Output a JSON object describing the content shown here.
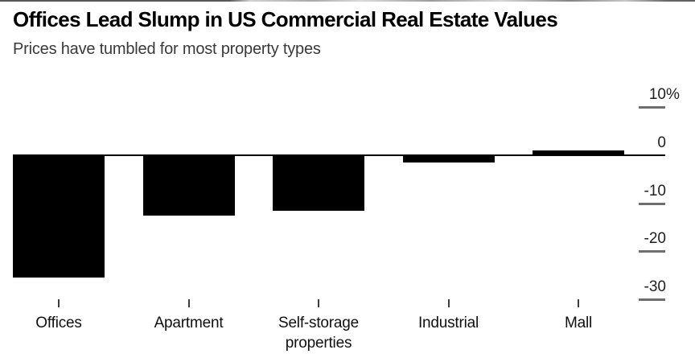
{
  "chart_data": {
    "type": "bar",
    "title": "Offices Lead Slump in US Commercial Real Estate Values",
    "subtitle": "Prices have tumbled for most property types",
    "categories": [
      "Offices",
      "Apartment",
      "Self-storage properties",
      "Industrial",
      "Mall"
    ],
    "category_labels": [
      "Offices",
      "Apartment",
      "Self-storage\nproperties",
      "Industrial",
      "Mall"
    ],
    "values": [
      -25.5,
      -12.5,
      -11.5,
      -1.5,
      1
    ],
    "unit": "%",
    "ylim": [
      -33,
      12
    ],
    "yticks": [
      {
        "value": 10,
        "label": "10",
        "suffix": "%"
      },
      {
        "value": 0,
        "label": "0",
        "suffix": ""
      },
      {
        "value": -10,
        "label": "-10",
        "suffix": ""
      },
      {
        "value": -20,
        "label": "-20",
        "suffix": ""
      },
      {
        "value": -30,
        "label": "-30",
        "suffix": ""
      }
    ],
    "grid": false,
    "legend": false,
    "axis_side": "right",
    "colors": {
      "bar": "#000000",
      "background": "#ffffff",
      "baseline": "#000000",
      "tick_dash": "#6f6f6f",
      "axis_text": "#1f1f1f",
      "x_tick": "#3c3c3c",
      "title_text": "#000000",
      "subtitle_text": "#3a3a3a"
    }
  }
}
